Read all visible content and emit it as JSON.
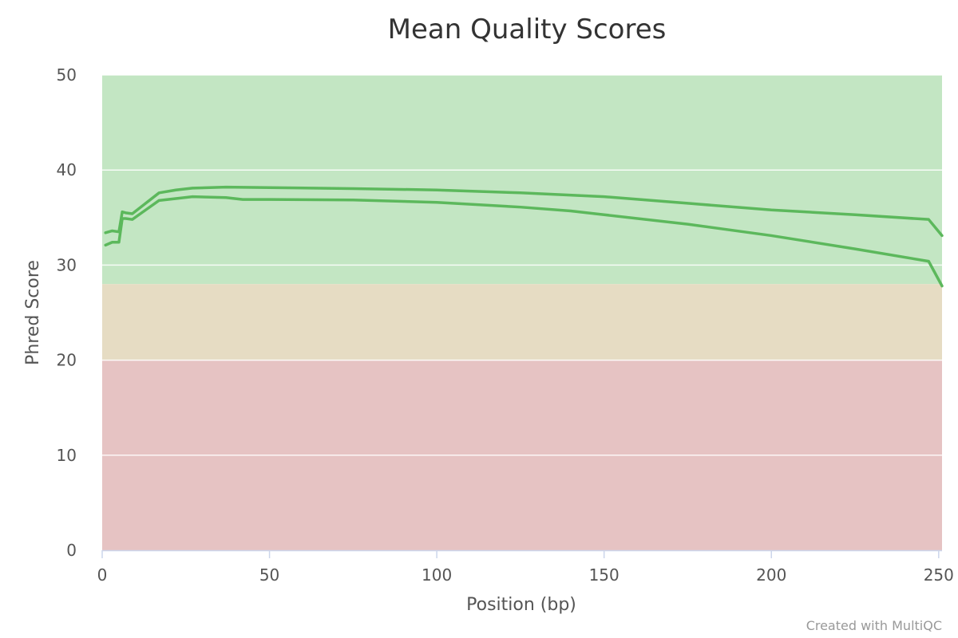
{
  "chart_data": {
    "type": "line",
    "title": "Mean Quality Scores",
    "xlabel": "Position (bp)",
    "ylabel": "Phred Score",
    "xlim": [
      0,
      251
    ],
    "ylim": [
      0,
      50
    ],
    "x_ticks": [
      0,
      50,
      100,
      150,
      200,
      250
    ],
    "y_ticks": [
      0,
      10,
      20,
      30,
      40,
      50
    ],
    "grid": true,
    "legend": "none",
    "credits": "Created with MultiQC",
    "bands": [
      {
        "from": 28,
        "to": 50,
        "color": "#c3e6c3"
      },
      {
        "from": 20,
        "to": 28,
        "color": "#e6dcc3"
      },
      {
        "from": 0,
        "to": 20,
        "color": "#e6c3c3"
      }
    ],
    "series": [
      {
        "color": "#5cb85c",
        "points": [
          [
            1,
            33.4
          ],
          [
            3,
            33.6
          ],
          [
            5,
            33.5
          ],
          [
            6,
            35.6
          ],
          [
            7,
            35.5
          ],
          [
            9,
            35.4
          ],
          [
            13,
            36.5
          ],
          [
            17,
            37.6
          ],
          [
            22,
            37.9
          ],
          [
            27,
            38.1
          ],
          [
            37,
            38.2
          ],
          [
            50,
            38.15
          ],
          [
            75,
            38.05
          ],
          [
            100,
            37.9
          ],
          [
            125,
            37.6
          ],
          [
            150,
            37.2
          ],
          [
            175,
            36.5
          ],
          [
            200,
            35.8
          ],
          [
            225,
            35.3
          ],
          [
            247,
            34.8
          ],
          [
            251,
            33.1
          ]
        ]
      },
      {
        "color": "#5cb85c",
        "points": [
          [
            1,
            32.1
          ],
          [
            3,
            32.4
          ],
          [
            5,
            32.4
          ],
          [
            6,
            34.9
          ],
          [
            7,
            34.9
          ],
          [
            9,
            34.8
          ],
          [
            13,
            35.8
          ],
          [
            17,
            36.8
          ],
          [
            22,
            37.0
          ],
          [
            27,
            37.2
          ],
          [
            37,
            37.1
          ],
          [
            42,
            36.9
          ],
          [
            50,
            36.9
          ],
          [
            75,
            36.85
          ],
          [
            100,
            36.6
          ],
          [
            125,
            36.1
          ],
          [
            140,
            35.7
          ],
          [
            150,
            35.3
          ],
          [
            175,
            34.3
          ],
          [
            200,
            33.1
          ],
          [
            225,
            31.7
          ],
          [
            247,
            30.4
          ],
          [
            251,
            27.8
          ]
        ]
      }
    ]
  }
}
